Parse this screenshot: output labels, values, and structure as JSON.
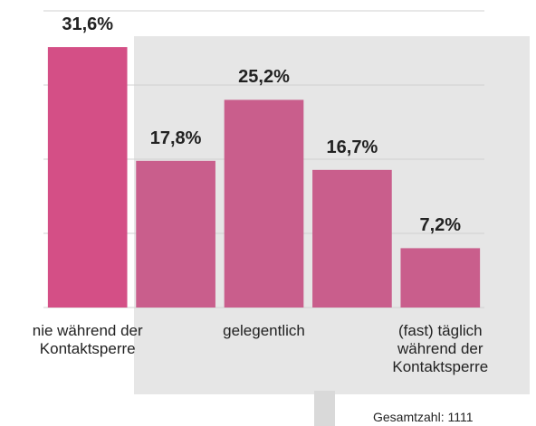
{
  "chart_data": {
    "type": "bar",
    "categories": [
      "nie während der\nKontaktsperre",
      null,
      "gelegentlich",
      null,
      "(fast) täglich\nwährend der\nKontaktsperre"
    ],
    "values": [
      31.6,
      17.8,
      25.2,
      16.7,
      7.2
    ],
    "value_labels": [
      "31,6%",
      "17,8%",
      "25,2%",
      "16,7%",
      "7,2%"
    ],
    "colors": [
      "#d44f86",
      "#c95e8c",
      "#c95e8c",
      "#c95e8c",
      "#c95e8c"
    ],
    "ylim": [
      0,
      36
    ],
    "yticks": [
      0,
      9,
      18,
      27,
      36
    ],
    "grid": true,
    "footnote": "Gesamtzahl: 1111"
  }
}
